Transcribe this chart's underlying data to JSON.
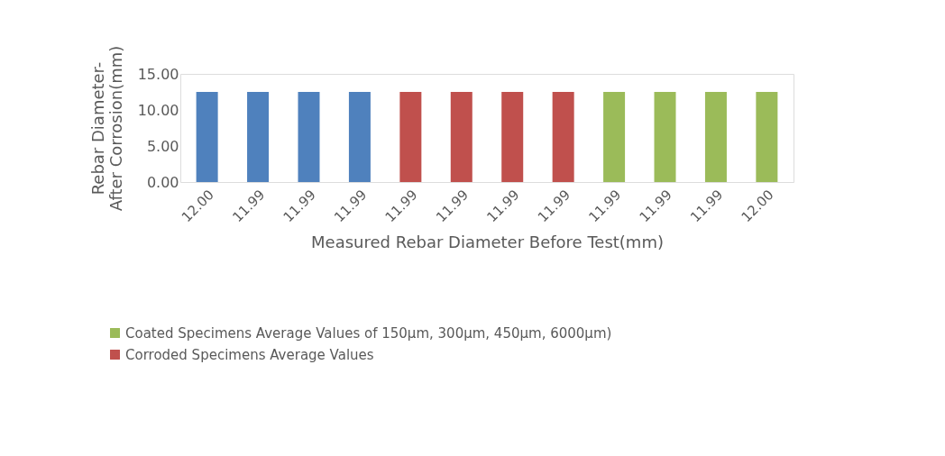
{
  "chart_data": {
    "type": "bar",
    "xlabel": "Measured Rebar Diameter Before Test(mm)",
    "ylabel": "Rebar Diameter- After Corrosion(mm)",
    "categories": [
      "12.00",
      "11.99",
      "11.99",
      "11.99",
      "11.99",
      "11.99",
      "11.99",
      "11.99",
      "11.99",
      "11.99",
      "11.99",
      "12.00"
    ],
    "series": [
      {
        "color": "#4f81bd",
        "values": [
          12.5,
          12.5,
          12.5,
          12.5,
          null,
          null,
          null,
          null,
          null,
          null,
          null,
          null
        ]
      },
      {
        "name": "Coated Specimens Average Values of 150µm, 300µm, 450µm, 6000µm)",
        "color": "#9bbb59",
        "values": [
          null,
          null,
          null,
          null,
          null,
          null,
          null,
          null,
          12.5,
          12.5,
          12.5,
          12.5
        ]
      },
      {
        "name": "Corroded Specimens Average Values",
        "color": "#c0504d",
        "values": [
          null,
          null,
          null,
          null,
          12.5,
          12.5,
          12.5,
          12.5,
          null,
          null,
          null,
          null
        ]
      }
    ],
    "ylim": [
      0,
      15
    ],
    "yticks": [
      {
        "value": 0,
        "label": "0.00"
      },
      {
        "value": 5,
        "label": "5.00"
      },
      {
        "value": 10,
        "label": "10.00"
      },
      {
        "value": 15,
        "label": "15.00"
      }
    ],
    "grid": false,
    "legend": "bottom left"
  }
}
